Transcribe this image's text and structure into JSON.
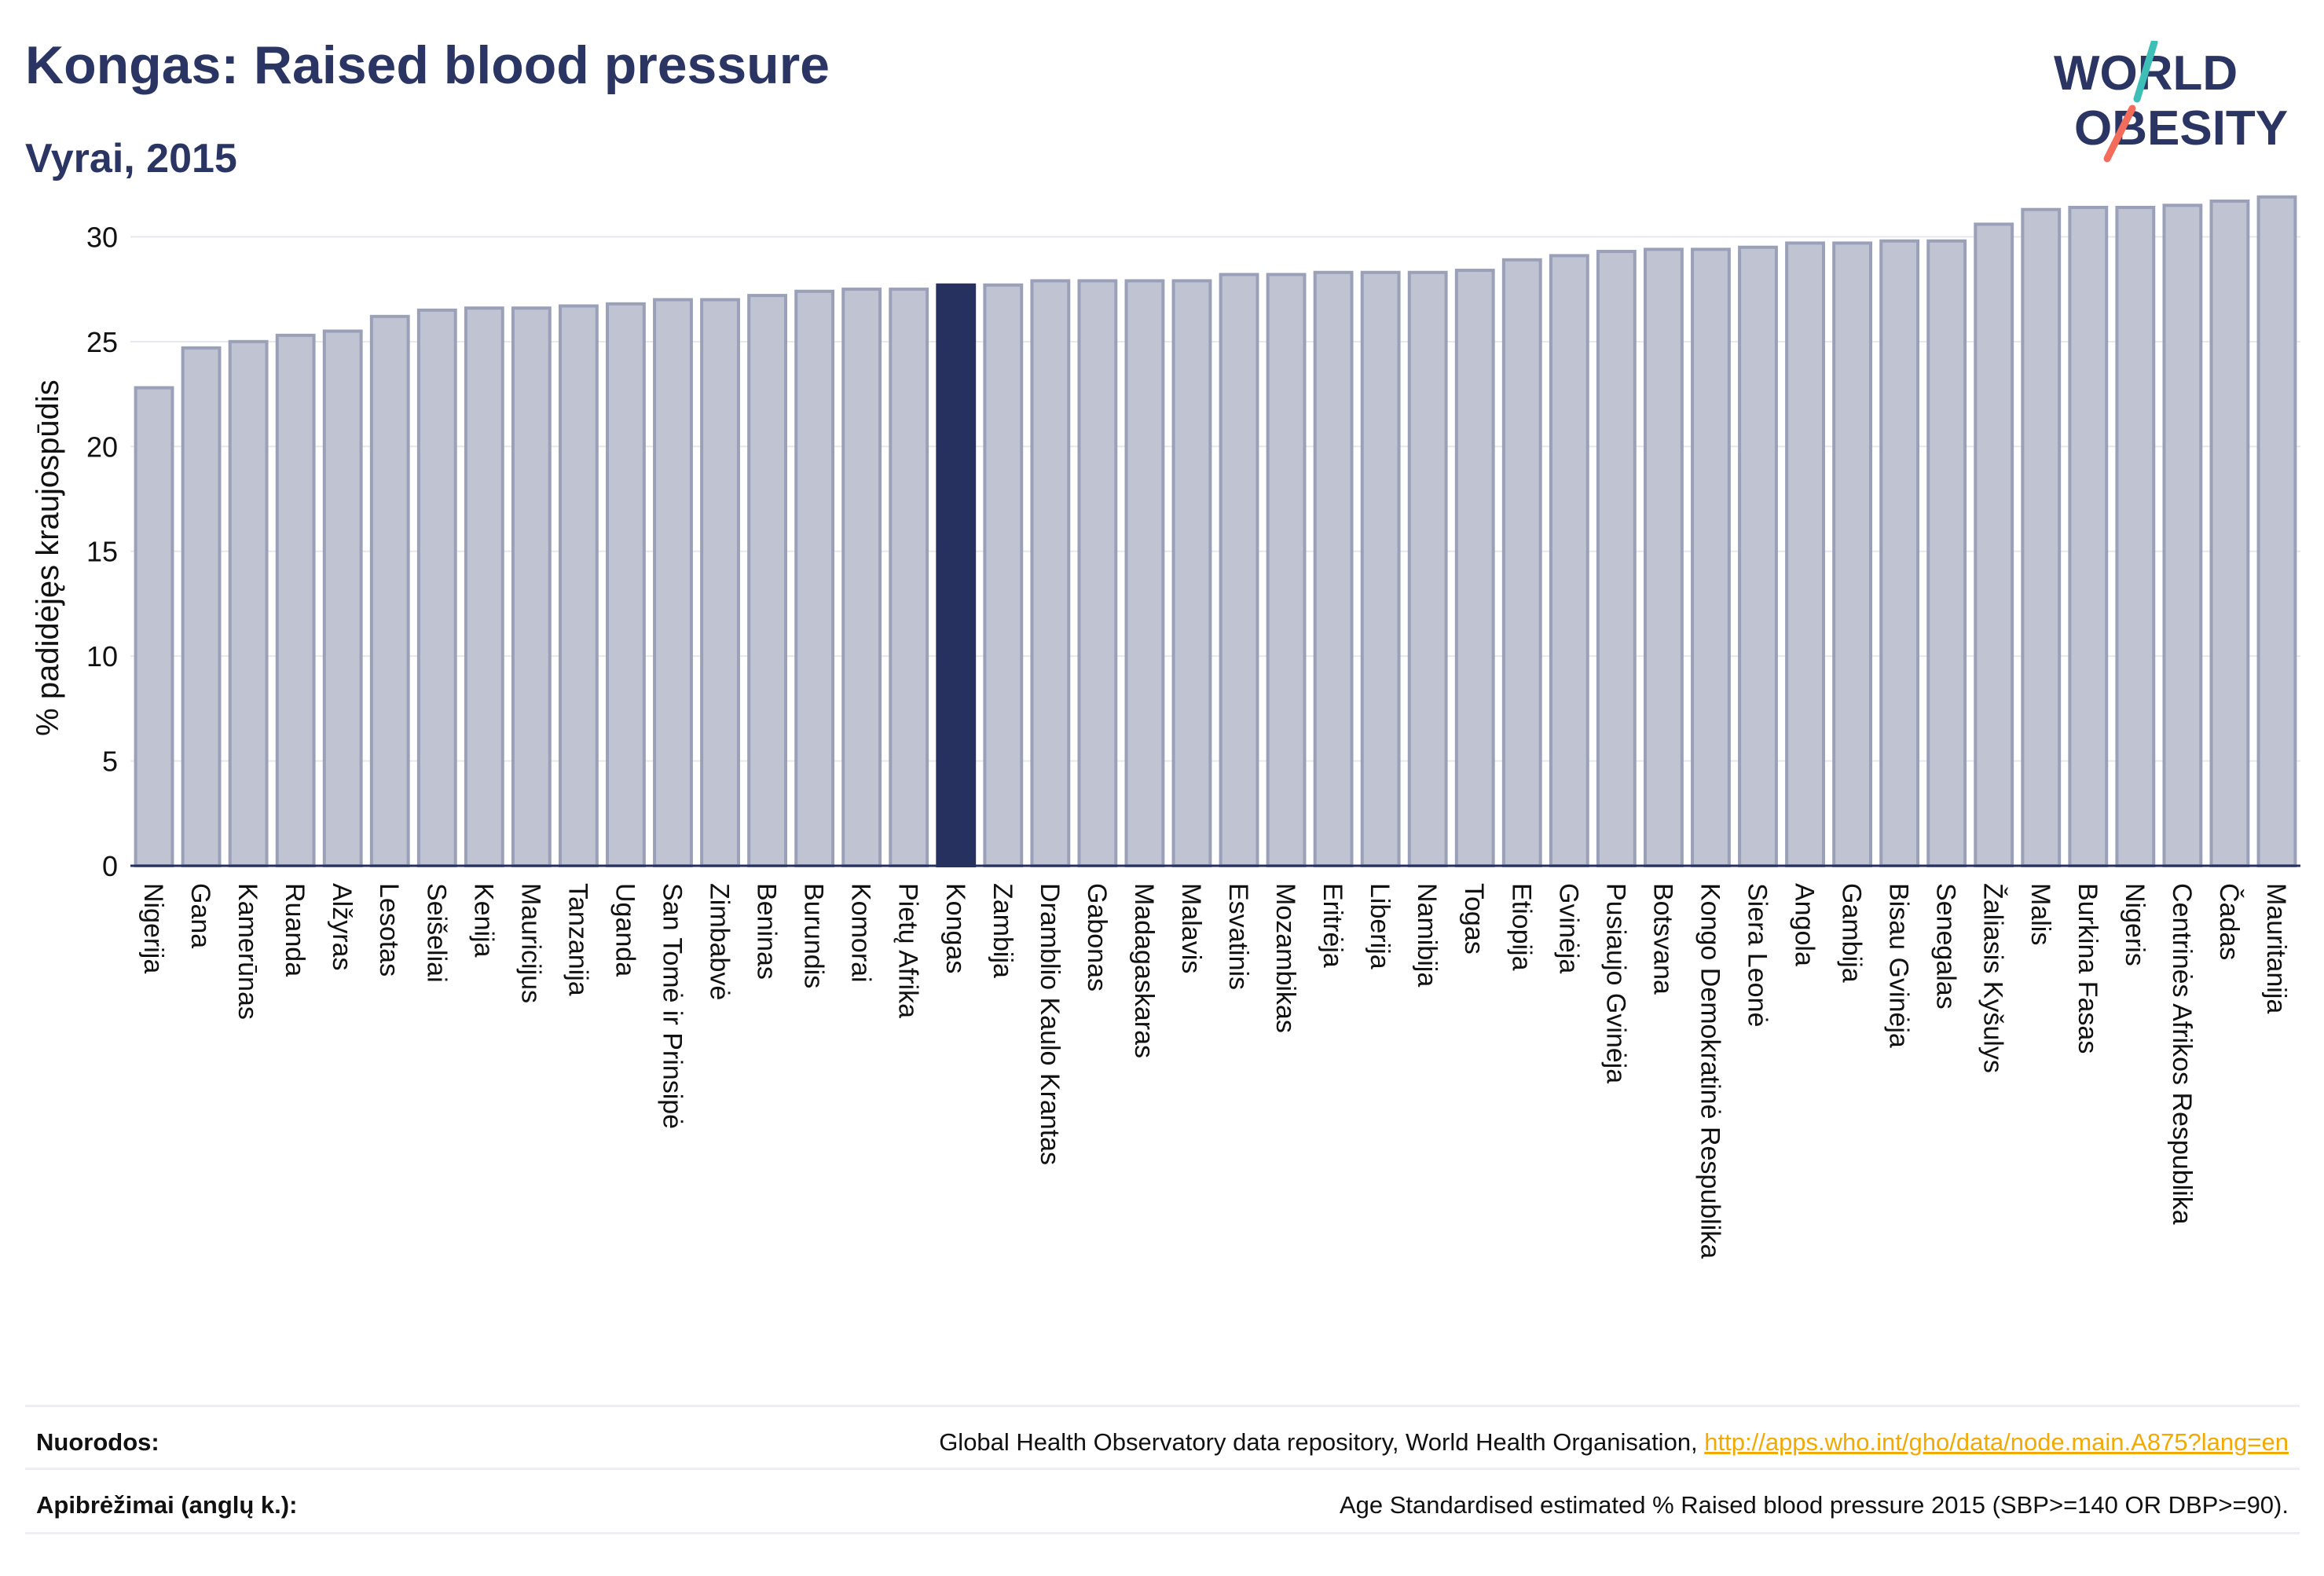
{
  "header": {
    "title": "Kongas: Raised blood pressure",
    "subtitle": "Vyrai, 2015"
  },
  "logo": {
    "line1": "WORLD",
    "line2": "OBESITY",
    "text_color": "#2a3563",
    "slash_colors": [
      "#3dbfb8",
      "#f26b5b"
    ]
  },
  "colors": {
    "bar_fill": "#bfc3d2",
    "bar_stroke": "#9aa0b8",
    "highlight_fill": "#263160",
    "axis": "#263160",
    "grid": "#e6e8ef"
  },
  "chart_data": {
    "type": "bar",
    "title": "",
    "xlabel": "",
    "ylabel": "% padidėjęs kraujospūdis",
    "ylim": [
      0,
      32
    ],
    "yticks": [
      0,
      5,
      10,
      15,
      20,
      25,
      30
    ],
    "grid": true,
    "highlight": "Kongas",
    "categories": [
      "Nigerija",
      "Gana",
      "Kamerūnas",
      "Ruanda",
      "Alžyras",
      "Lesotas",
      "Seišeliai",
      "Kenija",
      "Mauricijus",
      "Tanzanija",
      "Uganda",
      "San Tomė ir Prinsipė",
      "Zimbabvė",
      "Beninas",
      "Burundis",
      "Komorai",
      "Pietų Afrika",
      "Kongas",
      "Zambija",
      "Dramblio Kaulo Krantas",
      "Gabonas",
      "Madagaskaras",
      "Malavis",
      "Esvatinis",
      "Mozambikas",
      "Eritrėja",
      "Liberija",
      "Namibija",
      "Togas",
      "Etiopija",
      "Gvinėja",
      "Pusiaujo Gvinėja",
      "Botsvana",
      "Kongo Demokratinė Respublika",
      "Siera Leonė",
      "Angola",
      "Gambija",
      "Bisau Gvinėja",
      "Senegalas",
      "Žaliasis Kyšulys",
      "Malis",
      "Burkina Fasas",
      "Nigeris",
      "Centrinės Afrikos Respublika",
      "Čadas",
      "Mauritanija"
    ],
    "values": [
      22.8,
      24.7,
      25.0,
      25.3,
      25.5,
      26.2,
      26.5,
      26.6,
      26.6,
      26.7,
      26.8,
      27.0,
      27.0,
      27.2,
      27.4,
      27.5,
      27.5,
      27.7,
      27.7,
      27.9,
      27.9,
      27.9,
      27.9,
      28.2,
      28.2,
      28.3,
      28.3,
      28.3,
      28.4,
      28.9,
      29.1,
      29.3,
      29.4,
      29.4,
      29.5,
      29.7,
      29.7,
      29.8,
      29.8,
      30.6,
      31.3,
      31.4,
      31.4,
      31.5,
      31.7,
      31.9
    ]
  },
  "footer": {
    "sources_label": "Nuorodos:",
    "sources_text": "Global Health Observatory data repository, World Health Organisation, ",
    "sources_link": "http://apps.who.int/gho/data/node.main.A875?lang=en",
    "definitions_label": "Apibrėžimai (anglų k.):",
    "definitions_text": "Age Standardised estimated % Raised blood pressure 2015 (SBP>=140 OR DBP>=90)."
  }
}
